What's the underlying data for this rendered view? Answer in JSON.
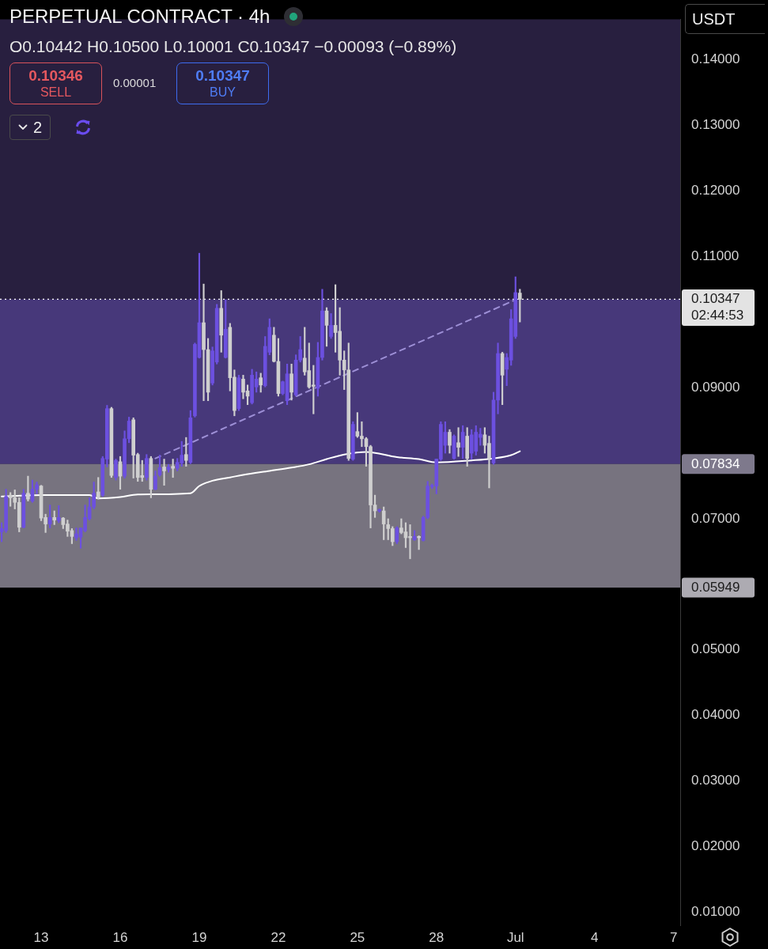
{
  "chart_data": {
    "type": "candlestick",
    "title": "PERPETUAL CONTRACT · 4h",
    "subtitle": "O0.10442 H0.10500 L0.10001 C0.10347 −0.00093 (−0.89%)",
    "annotations": [
      "0.10346",
      "SELL",
      "0.00001",
      "0.10347",
      "BUY",
      "2",
      "USDT"
    ],
    "xlim": [
      "--06-11T10:30",
      "--07-07T06:00"
    ],
    "xticks": [
      {
        "value": "--06-13",
        "label": "13"
      },
      {
        "value": "--06-16",
        "label": "16"
      },
      {
        "value": "--06-19",
        "label": "19"
      },
      {
        "value": "--06-22",
        "label": "22"
      },
      {
        "value": "--06-25",
        "label": "25"
      },
      {
        "value": "--06-28",
        "label": "28"
      },
      {
        "value": "--07-01",
        "label": "Jul"
      },
      {
        "value": "--07-04",
        "label": "4"
      },
      {
        "value": "--07-07",
        "label": "7"
      }
    ],
    "ylim": [
      0.008,
      0.1462
    ],
    "yticks": [
      {
        "value": 0.01,
        "label": "0.01000"
      },
      {
        "value": 0.02,
        "label": "0.02000"
      },
      {
        "value": 0.03,
        "label": "0.03000"
      },
      {
        "value": 0.04,
        "label": "0.04000"
      },
      {
        "value": 0.05,
        "label": "0.05000"
      },
      {
        "value": 0.07,
        "label": "0.07000"
      },
      {
        "value": 0.09,
        "label": "0.09000"
      },
      {
        "value": 0.11,
        "label": "0.11000"
      },
      {
        "value": 0.12,
        "label": "0.12000"
      },
      {
        "value": 0.13,
        "label": "0.13000"
      },
      {
        "value": 0.14,
        "label": "0.14000"
      }
    ],
    "series": [
      {
        "x": [
          "--06-11T12:00",
          "--06-11T16:00",
          "--06-11T20:00",
          "--06-12T00:00",
          "--06-12T04:00",
          "--06-12T08:00",
          "--06-12T12:00",
          "--06-12T16:00",
          "--06-12T20:00",
          "--06-13T00:00",
          "--06-13T04:00",
          "--06-13T08:00",
          "--06-13T12:00",
          "--06-13T16:00",
          "--06-13T20:00",
          "--06-14T00:00",
          "--06-14T04:00",
          "--06-14T08:00",
          "--06-14T12:00",
          "--06-14T16:00",
          "--06-14T20:00",
          "--06-15T00:00",
          "--06-15T04:00",
          "--06-15T08:00",
          "--06-15T12:00",
          "--06-15T16:00",
          "--06-15T20:00",
          "--06-16T00:00",
          "--06-16T04:00",
          "--06-16T08:00",
          "--06-16T12:00",
          "--06-16T16:00",
          "--06-16T20:00",
          "--06-17T00:00",
          "--06-17T04:00",
          "--06-17T08:00",
          "--06-17T12:00",
          "--06-17T16:00",
          "--06-17T20:00",
          "--06-18T00:00",
          "--06-18T04:00",
          "--06-18T08:00",
          "--06-18T12:00",
          "--06-18T16:00",
          "--06-18T20:00",
          "--06-19T00:00",
          "--06-19T04:00",
          "--06-19T08:00",
          "--06-19T12:00",
          "--06-19T16:00",
          "--06-19T20:00",
          "--06-20T00:00",
          "--06-20T04:00",
          "--06-20T08:00",
          "--06-20T12:00",
          "--06-20T16:00",
          "--06-20T20:00",
          "--06-21T00:00",
          "--06-21T04:00",
          "--06-21T08:00",
          "--06-21T12:00",
          "--06-21T16:00",
          "--06-21T20:00",
          "--06-22T00:00",
          "--06-22T04:00",
          "--06-22T08:00",
          "--06-22T12:00",
          "--06-22T16:00",
          "--06-22T20:00",
          "--06-23T00:00",
          "--06-23T04:00",
          "--06-23T08:00",
          "--06-23T12:00",
          "--06-23T16:00",
          "--06-23T20:00",
          "--06-24T00:00",
          "--06-24T04:00",
          "--06-24T08:00",
          "--06-24T12:00",
          "--06-24T16:00",
          "--06-24T20:00",
          "--06-25T00:00",
          "--06-25T04:00",
          "--06-25T08:00",
          "--06-25T12:00",
          "--06-25T16:00",
          "--06-25T20:00",
          "--06-26T00:00",
          "--06-26T04:00",
          "--06-26T08:00",
          "--06-26T12:00",
          "--06-26T16:00",
          "--06-26T20:00",
          "--06-27T00:00",
          "--06-27T04:00",
          "--06-27T08:00",
          "--06-27T12:00",
          "--06-27T16:00",
          "--06-27T20:00",
          "--06-28T00:00",
          "--06-28T04:00",
          "--06-28T08:00",
          "--06-28T12:00",
          "--06-28T16:00",
          "--06-28T20:00",
          "--06-29T00:00",
          "--06-29T04:00",
          "--06-29T08:00",
          "--06-29T12:00",
          "--06-29T16:00",
          "--06-29T20:00",
          "--06-30T00:00",
          "--06-30T04:00",
          "--06-30T08:00",
          "--06-30T12:00",
          "--06-30T16:00",
          "--06-30T20:00",
          "--07-01T00:00",
          "--07-01T04:00"
        ],
        "ohlc": [
          [
            0.068,
            0.0694,
            0.0665,
            0.0685
          ],
          [
            0.0682,
            0.0745,
            0.0679,
            0.0734
          ],
          [
            0.0736,
            0.074,
            0.0719,
            0.0732
          ],
          [
            0.0732,
            0.0744,
            0.0715,
            0.0725
          ],
          [
            0.0725,
            0.0732,
            0.068,
            0.0687
          ],
          [
            0.0687,
            0.0745,
            0.0686,
            0.0739
          ],
          [
            0.0739,
            0.0765,
            0.0727,
            0.073
          ],
          [
            0.0727,
            0.0759,
            0.0725,
            0.0745
          ],
          [
            0.0745,
            0.0756,
            0.0738,
            0.0752
          ],
          [
            0.075,
            0.0751,
            0.0697,
            0.0701
          ],
          [
            0.0702,
            0.0707,
            0.0679,
            0.0692
          ],
          [
            0.0692,
            0.0721,
            0.0686,
            0.0702
          ],
          [
            0.0702,
            0.0712,
            0.0691,
            0.0698
          ],
          [
            0.0697,
            0.072,
            0.0694,
            0.0702
          ],
          [
            0.0701,
            0.0702,
            0.0685,
            0.0691
          ],
          [
            0.0692,
            0.0698,
            0.0673,
            0.0681
          ],
          [
            0.0682,
            0.0685,
            0.0662,
            0.0673
          ],
          [
            0.0671,
            0.0686,
            0.0667,
            0.0677
          ],
          [
            0.0672,
            0.0686,
            0.0655,
            0.0686
          ],
          [
            0.0682,
            0.0721,
            0.068,
            0.0702
          ],
          [
            0.07,
            0.0732,
            0.0698,
            0.0718
          ],
          [
            0.0718,
            0.0756,
            0.0715,
            0.0739
          ],
          [
            0.0741,
            0.0763,
            0.073,
            0.0733
          ],
          [
            0.0736,
            0.0795,
            0.0734,
            0.0792
          ],
          [
            0.0791,
            0.0873,
            0.0779,
            0.0868
          ],
          [
            0.0868,
            0.087,
            0.0763,
            0.0766
          ],
          [
            0.0763,
            0.0791,
            0.0759,
            0.0789
          ],
          [
            0.0787,
            0.0795,
            0.0745,
            0.0765
          ],
          [
            0.0765,
            0.0834,
            0.0762,
            0.0822
          ],
          [
            0.0822,
            0.0855,
            0.0816,
            0.0849
          ],
          [
            0.0851,
            0.0854,
            0.0762,
            0.0797
          ],
          [
            0.0798,
            0.08,
            0.0757,
            0.0763
          ],
          [
            0.0766,
            0.0789,
            0.0757,
            0.0763
          ],
          [
            0.0763,
            0.0798,
            0.0759,
            0.0792
          ],
          [
            0.0792,
            0.0795,
            0.0732,
            0.0745
          ],
          [
            0.0745,
            0.0773,
            0.0744,
            0.0765
          ],
          [
            0.0767,
            0.0797,
            0.0765,
            0.0778
          ],
          [
            0.0779,
            0.0791,
            0.0751,
            0.0773
          ],
          [
            0.0775,
            0.0783,
            0.0771,
            0.0779
          ],
          [
            0.078,
            0.0791,
            0.0763,
            0.0777
          ],
          [
            0.0777,
            0.0792,
            0.0773,
            0.0786
          ],
          [
            0.0785,
            0.0818,
            0.078,
            0.0797
          ],
          [
            0.0798,
            0.0824,
            0.078,
            0.0789
          ],
          [
            0.0786,
            0.0865,
            0.0784,
            0.0854
          ],
          [
            0.0857,
            0.0968,
            0.0855,
            0.0966
          ],
          [
            0.0946,
            0.1105,
            0.0945,
            0.0999
          ],
          [
            0.0999,
            0.1058,
            0.088,
            0.0958
          ],
          [
            0.0958,
            0.0975,
            0.088,
            0.0893
          ],
          [
            0.0907,
            0.0962,
            0.0904,
            0.0956
          ],
          [
            0.0939,
            0.1027,
            0.0936,
            0.1021
          ],
          [
            0.1021,
            0.1048,
            0.0954,
            0.098
          ],
          [
            0.0946,
            0.1034,
            0.0945,
            0.0989
          ],
          [
            0.0992,
            0.0998,
            0.0895,
            0.0915
          ],
          [
            0.0916,
            0.0927,
            0.0857,
            0.0865
          ],
          [
            0.0868,
            0.0919,
            0.0865,
            0.0915
          ],
          [
            0.0913,
            0.0919,
            0.0883,
            0.0893
          ],
          [
            0.0895,
            0.0904,
            0.0874,
            0.0887
          ],
          [
            0.0877,
            0.0928,
            0.0875,
            0.0919
          ],
          [
            0.0901,
            0.0924,
            0.0893,
            0.0913
          ],
          [
            0.0915,
            0.0922,
            0.0893,
            0.0904
          ],
          [
            0.0903,
            0.0978,
            0.0901,
            0.0963
          ],
          [
            0.0954,
            0.1005,
            0.095,
            0.0992
          ],
          [
            0.098,
            0.0992,
            0.0939,
            0.094
          ],
          [
            0.094,
            0.0975,
            0.0887,
            0.0891
          ],
          [
            0.0891,
            0.091,
            0.0889,
            0.0909
          ],
          [
            0.088,
            0.0936,
            0.0874,
            0.0921
          ],
          [
            0.0921,
            0.0936,
            0.0881,
            0.0893
          ],
          [
            0.0889,
            0.095,
            0.0887,
            0.0942
          ],
          [
            0.0942,
            0.0978,
            0.0939,
            0.0958
          ],
          [
            0.0945,
            0.0992,
            0.0919,
            0.0924
          ],
          [
            0.0926,
            0.0968,
            0.0899,
            0.0901
          ],
          [
            0.0904,
            0.0934,
            0.086,
            0.0902
          ],
          [
            0.0899,
            0.0969,
            0.0887,
            0.0946
          ],
          [
            0.0946,
            0.105,
            0.0942,
            0.1017
          ],
          [
            0.1017,
            0.1022,
            0.0963,
            0.0995
          ],
          [
            0.0978,
            0.1013,
            0.0975,
            0.0995
          ],
          [
            0.0995,
            0.1057,
            0.0954,
            0.0984
          ],
          [
            0.0986,
            0.1022,
            0.0919,
            0.0942
          ],
          [
            0.0942,
            0.0956,
            0.0897,
            0.0927
          ],
          [
            0.0927,
            0.0968,
            0.0789,
            0.0792
          ],
          [
            0.0791,
            0.0848,
            0.0789,
            0.0844
          ],
          [
            0.0833,
            0.0862,
            0.0824,
            0.0826
          ],
          [
            0.0826,
            0.0848,
            0.081,
            0.0822
          ],
          [
            0.0822,
            0.0824,
            0.078,
            0.081
          ],
          [
            0.081,
            0.0812,
            0.0686,
            0.0721
          ],
          [
            0.0721,
            0.0736,
            0.0702,
            0.0712
          ],
          [
            0.0712,
            0.0715,
            0.071,
            0.0713
          ],
          [
            0.0712,
            0.0718,
            0.0668,
            0.0692
          ],
          [
            0.0691,
            0.07,
            0.0668,
            0.0685
          ],
          [
            0.0685,
            0.0688,
            0.0659,
            0.0665
          ],
          [
            0.0665,
            0.0688,
            0.0662,
            0.0686
          ],
          [
            0.0686,
            0.07,
            0.0677,
            0.0679
          ],
          [
            0.068,
            0.0694,
            0.0656,
            0.0671
          ],
          [
            0.0673,
            0.0691,
            0.0639,
            0.0671
          ],
          [
            0.0668,
            0.0682,
            0.0667,
            0.0673
          ],
          [
            0.0673,
            0.0674,
            0.0653,
            0.0671
          ],
          [
            0.0667,
            0.0704,
            0.0666,
            0.0702
          ],
          [
            0.0702,
            0.0757,
            0.07,
            0.075
          ],
          [
            0.0749,
            0.0753,
            0.0746,
            0.075
          ],
          [
            0.075,
            0.0791,
            0.0738,
            0.0791
          ],
          [
            0.0791,
            0.0848,
            0.0789,
            0.0844
          ],
          [
            0.0812,
            0.0848,
            0.08,
            0.0832
          ],
          [
            0.0832,
            0.0836,
            0.08,
            0.0812
          ],
          [
            0.0792,
            0.0828,
            0.0791,
            0.0826
          ],
          [
            0.0816,
            0.0839,
            0.0795,
            0.0809
          ],
          [
            0.0809,
            0.0842,
            0.0792,
            0.0832
          ],
          [
            0.0826,
            0.0839,
            0.078,
            0.0792
          ],
          [
            0.08,
            0.0836,
            0.0791,
            0.0828
          ],
          [
            0.0803,
            0.0842,
            0.0797,
            0.0832
          ],
          [
            0.0824,
            0.0838,
            0.0812,
            0.0829
          ],
          [
            0.0828,
            0.0839,
            0.08,
            0.0812
          ],
          [
            0.0815,
            0.0826,
            0.0747,
            0.0792
          ],
          [
            0.0785,
            0.0893,
            0.0783,
            0.0881
          ],
          [
            0.0881,
            0.0968,
            0.086,
            0.0952
          ],
          [
            0.0952,
            0.0954,
            0.0874,
            0.0919
          ],
          [
            0.0928,
            0.0952,
            0.0903,
            0.0946
          ],
          [
            0.0942,
            0.1019,
            0.0934,
            0.1005
          ],
          [
            0.0978,
            0.1069,
            0.0975,
            0.1045
          ],
          [
            0.10442,
            0.105,
            0.10001,
            0.10347
          ]
        ],
        "colors": [
          "#6c50e0",
          "#6c50e0",
          "#cfcfcf",
          "#cfcfcf",
          "#cfcfcf",
          "#6c50e0",
          "#cfcfcf",
          "#6c50e0",
          "#6c50e0",
          "#cfcfcf",
          "#cfcfcf",
          "#6c50e0",
          "#cfcfcf",
          "#6c50e0",
          "#cfcfcf",
          "#cfcfcf",
          "#cfcfcf",
          "#6c50e0",
          "#6c50e0",
          "#6c50e0",
          "#6c50e0",
          "#6c50e0",
          "#cfcfcf",
          "#6c50e0",
          "#6c50e0",
          "#cfcfcf",
          "#6c50e0",
          "#cfcfcf",
          "#6c50e0",
          "#6c50e0",
          "#cfcfcf",
          "#cfcfcf",
          "#cfcfcf",
          "#6c50e0",
          "#cfcfcf",
          "#6c50e0",
          "#6c50e0",
          "#cfcfcf",
          "#6c50e0",
          "#cfcfcf",
          "#6c50e0",
          "#6c50e0",
          "#cfcfcf",
          "#6c50e0",
          "#6c50e0",
          "#6c50e0",
          "#cfcfcf",
          "#cfcfcf",
          "#6c50e0",
          "#6c50e0",
          "#cfcfcf",
          "#6c50e0",
          "#cfcfcf",
          "#cfcfcf",
          "#6c50e0",
          "#cfcfcf",
          "#cfcfcf",
          "#6c50e0",
          "#6c50e0",
          "#cfcfcf",
          "#6c50e0",
          "#6c50e0",
          "#cfcfcf",
          "#cfcfcf",
          "#6c50e0",
          "#6c50e0",
          "#cfcfcf",
          "#6c50e0",
          "#6c50e0",
          "#cfcfcf",
          "#cfcfcf",
          "#cfcfcf",
          "#6c50e0",
          "#6c50e0",
          "#cfcfcf",
          "#6c50e0",
          "#cfcfcf",
          "#cfcfcf",
          "#cfcfcf",
          "#cfcfcf",
          "#6c50e0",
          "#cfcfcf",
          "#cfcfcf",
          "#cfcfcf",
          "#cfcfcf",
          "#cfcfcf",
          "#6c50e0",
          "#cfcfcf",
          "#cfcfcf",
          "#cfcfcf",
          "#6c50e0",
          "#cfcfcf",
          "#cfcfcf",
          "#cfcfcf",
          "#6c50e0",
          "#cfcfcf",
          "#6c50e0",
          "#6c50e0",
          "#6c50e0",
          "#6c50e0",
          "#6c50e0",
          "#6c50e0",
          "#cfcfcf",
          "#6c50e0",
          "#cfcfcf",
          "#6c50e0",
          "#cfcfcf",
          "#6c50e0",
          "#6c50e0",
          "#6c50e0",
          "#cfcfcf",
          "#cfcfcf",
          "#6c50e0",
          "#6c50e0",
          "#cfcfcf",
          "#6c50e0",
          "#6c50e0",
          "#6c50e0",
          "#cfcfcf"
        ]
      },
      {
        "type": "line",
        "color": "#ffffff",
        "x": [
          "--06-11T12:00",
          "--06-13T04:00",
          "--06-14T20:00",
          "--06-15T04:00",
          "--06-16T00:00",
          "--06-16T16:00",
          "--06-18T16:00",
          "--06-19T00:00",
          "--06-19T12:00",
          "--06-20T04:00",
          "--06-20T16:00",
          "--06-21T16:00",
          "--06-22T12:00",
          "--06-23T04:00",
          "--06-23T20:00",
          "--06-24T12:00",
          "--06-25T08:00",
          "--06-26T12:00",
          "--06-27T08:00",
          "--06-28T00:00",
          "--06-29T08:00",
          "--06-30T04:00",
          "--06-30T20:00",
          "--07-01T04:00"
        ],
        "values": [
          0.0734,
          0.0736,
          0.0736,
          0.0731,
          0.0733,
          0.0737,
          0.0739,
          0.075,
          0.0758,
          0.0763,
          0.0767,
          0.0773,
          0.0778,
          0.0783,
          0.0791,
          0.0798,
          0.0802,
          0.0794,
          0.0791,
          0.0786,
          0.0789,
          0.0792,
          0.0797,
          0.0803
        ]
      },
      {
        "type": "line",
        "color": "#9d8fd6",
        "line_style": "dashed",
        "x": [
          "--06-17T08:00",
          "--07-01T00:00"
        ],
        "values": [
          0.0792,
          0.1034
        ]
      }
    ],
    "ref_lines": [
      {
        "axis": "y",
        "value": 0.10347,
        "label": "0.10347\n02:44:53",
        "color": "#ffffff",
        "line_style": "dotted"
      }
    ],
    "bands": [
      {
        "axis": "y",
        "from": 0.07834,
        "to": 0.1462,
        "label": "0.07834",
        "color": "#281f3f"
      },
      {
        "axis": "y",
        "from": 0.07834,
        "to": 0.10347,
        "color": "#47387a"
      },
      {
        "axis": "y",
        "from": 0.05949,
        "to": 0.07834,
        "label": "0.05949",
        "color": "#77737f"
      }
    ]
  }
}
